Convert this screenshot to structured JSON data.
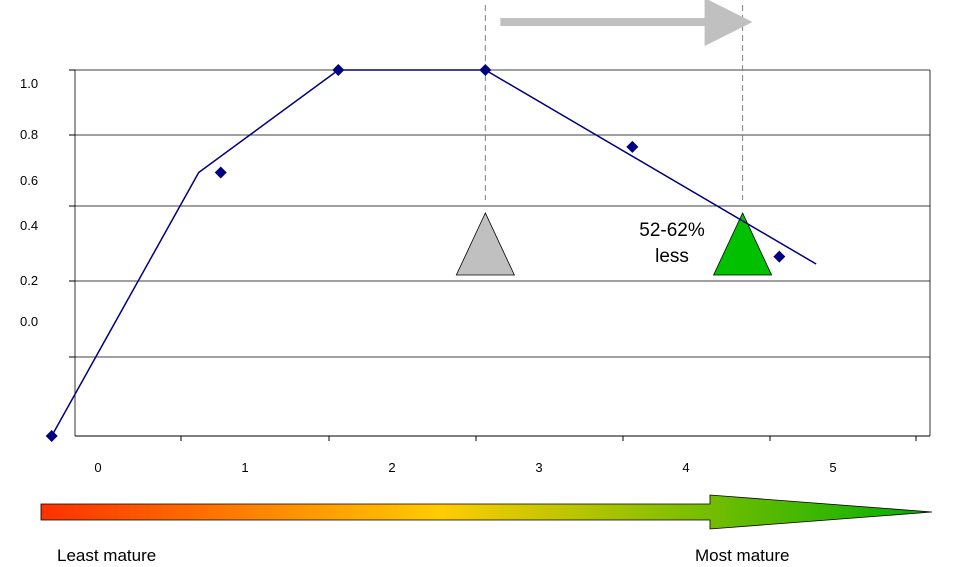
{
  "chart_data": {
    "type": "line",
    "title": "",
    "xlabel": "",
    "ylabel": "",
    "x_ticks": [
      "0",
      "1",
      "2",
      "3",
      "4",
      "5"
    ],
    "y_ticks": [
      "1.0",
      "0.8",
      "0.6",
      "0.4",
      "0.2",
      "0.0"
    ],
    "ylim": [
      0,
      1
    ],
    "grid": true,
    "series_line": [
      [
        0.1,
        0.0
      ],
      [
        1.1,
        0.72
      ],
      [
        2.05,
        1.0
      ],
      [
        3.05,
        1.0
      ],
      [
        5.3,
        0.47
      ]
    ],
    "series_points": [
      [
        0.1,
        0.0
      ],
      [
        1.25,
        0.72
      ],
      [
        2.05,
        1.0
      ],
      [
        3.05,
        1.0
      ],
      [
        4.05,
        0.79
      ],
      [
        5.05,
        0.49
      ]
    ],
    "annotation": {
      "line1": "52-62%",
      "line2": "less"
    },
    "shift_arrow": {
      "from_x": 3.05,
      "to_x": 4.8
    },
    "markers": [
      {
        "x": 3.05,
        "y": 0.48,
        "color": "#c0c0c0"
      },
      {
        "x": 4.8,
        "y": 0.48,
        "color": "#00c000"
      }
    ],
    "colors": {
      "line": "#000080",
      "points": "#000080",
      "gridline": "#000000",
      "shift_arrow": "#c0c0c0",
      "guide_line": "#808080",
      "gradient_start": "#ff3000",
      "gradient_mid": "#ffcc00",
      "gradient_end": "#00b000"
    }
  },
  "maturity_scale": {
    "left_label": "Least mature",
    "right_label": "Most mature"
  }
}
